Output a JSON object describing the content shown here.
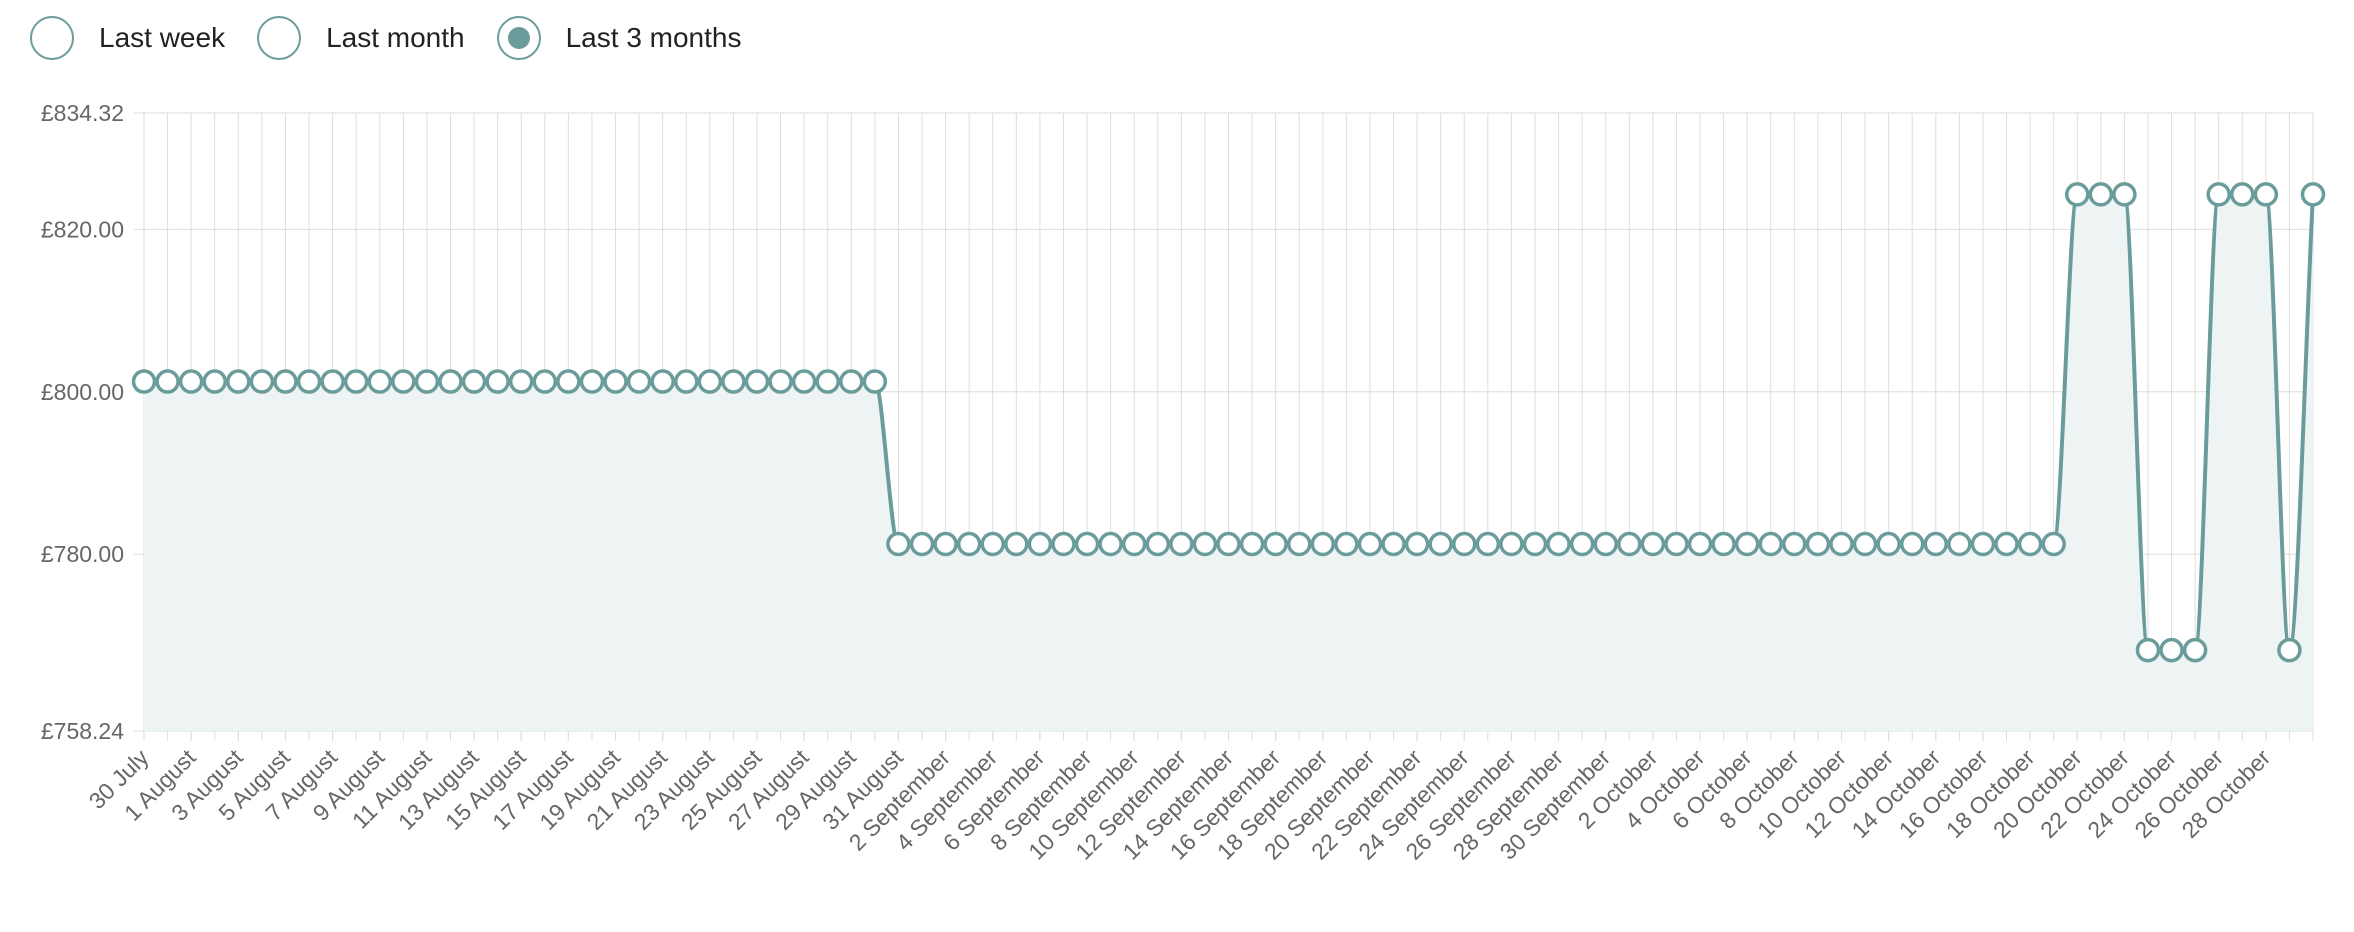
{
  "range_options": [
    {
      "label": "Last week",
      "selected": false
    },
    {
      "label": "Last month",
      "selected": false
    },
    {
      "label": "Last 3 months",
      "selected": true
    }
  ],
  "colors": {
    "line": "#6a9c9b",
    "fill": "#eef3f3",
    "grid": "#dddddd",
    "tick_text": "#666666"
  },
  "chart_data": {
    "type": "line",
    "title": "",
    "xlabel": "",
    "ylabel": "",
    "ylim": [
      758.24,
      834.32
    ],
    "y_ticks": [
      {
        "value": 834.32,
        "label": "£834.32"
      },
      {
        "value": 820.0,
        "label": "£820.00"
      },
      {
        "value": 800.0,
        "label": "£800.00"
      },
      {
        "value": 780.0,
        "label": "£780.00"
      },
      {
        "value": 758.24,
        "label": "£758.24"
      }
    ],
    "x_start_date": "30 July",
    "x_tick_labels": [
      "30 July",
      "1 August",
      "3 August",
      "5 August",
      "7 August",
      "9 August",
      "11 August",
      "13 August",
      "15 August",
      "17 August",
      "19 August",
      "21 August",
      "23 August",
      "25 August",
      "27 August",
      "29 August",
      "31 August",
      "2 September",
      "4 September",
      "6 September",
      "8 September",
      "10 September",
      "12 September",
      "14 September",
      "16 September",
      "18 September",
      "20 September",
      "22 September",
      "24 September",
      "26 September",
      "28 September",
      "30 September",
      "2 October",
      "4 October",
      "6 October",
      "8 October",
      "10 October",
      "12 October",
      "14 October",
      "16 October",
      "18 October",
      "20 October",
      "22 October",
      "24 October",
      "26 October",
      "28 October"
    ],
    "grid": true,
    "series": [
      {
        "values": [
          801.26,
          801.26,
          801.26,
          801.26,
          801.26,
          801.26,
          801.26,
          801.26,
          801.26,
          801.26,
          801.26,
          801.26,
          801.26,
          801.26,
          801.26,
          801.26,
          801.26,
          801.26,
          801.26,
          801.26,
          801.26,
          801.26,
          801.26,
          801.26,
          801.26,
          801.26,
          801.26,
          801.26,
          801.26,
          801.26,
          801.26,
          801.26,
          781.26,
          781.26,
          781.26,
          781.26,
          781.26,
          781.26,
          781.26,
          781.26,
          781.26,
          781.26,
          781.26,
          781.26,
          781.26,
          781.26,
          781.26,
          781.26,
          781.26,
          781.26,
          781.26,
          781.26,
          781.26,
          781.26,
          781.26,
          781.26,
          781.26,
          781.26,
          781.26,
          781.26,
          781.26,
          781.26,
          781.26,
          781.26,
          781.26,
          781.26,
          781.26,
          781.26,
          781.26,
          781.26,
          781.26,
          781.26,
          781.26,
          781.26,
          781.26,
          781.26,
          781.26,
          781.26,
          781.26,
          781.26,
          781.26,
          781.26,
          824.3,
          824.3,
          824.3,
          768.19,
          768.19,
          768.19,
          824.3,
          824.3,
          824.3,
          768.19,
          824.3
        ]
      }
    ]
  }
}
